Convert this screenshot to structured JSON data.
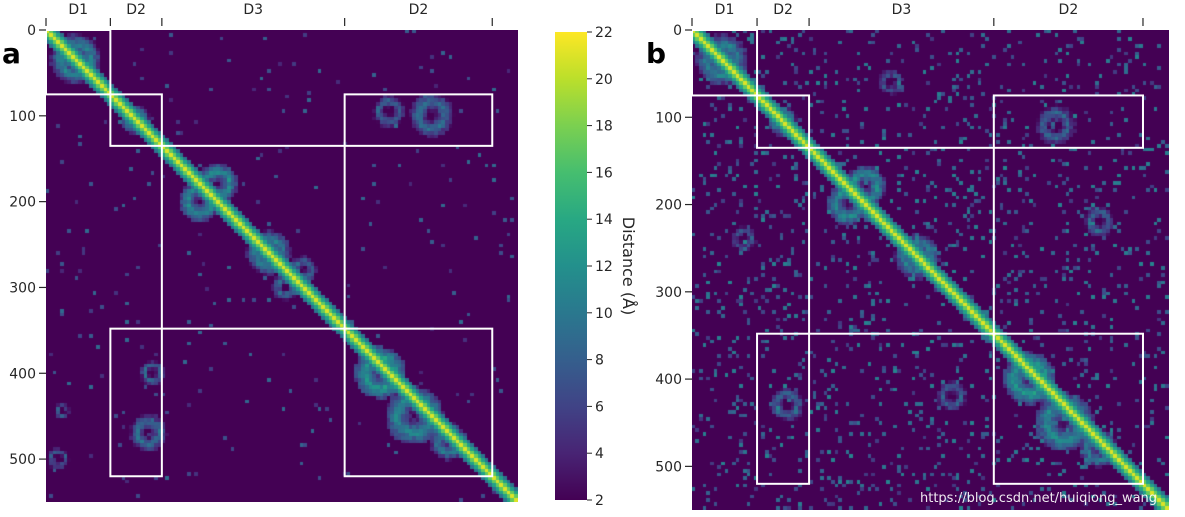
{
  "chart_data": [
    {
      "type": "heatmap",
      "panel_label": "a",
      "description_kind": "residue distance map",
      "domains": [
        {
          "name": "D1",
          "range": [
            0,
            75
          ]
        },
        {
          "name": "D2",
          "range": [
            75,
            135
          ]
        },
        {
          "name": "D3",
          "range": [
            135,
            348
          ]
        },
        {
          "name": "D2",
          "range": [
            348,
            520
          ]
        }
      ],
      "boxes": [
        {
          "x": [
            0,
            75
          ],
          "y": [
            0,
            75
          ]
        },
        {
          "x": [
            75,
            135
          ],
          "y": [
            75,
            135
          ]
        },
        {
          "x": [
            348,
            520
          ],
          "y": [
            75,
            135
          ]
        },
        {
          "x": [
            135,
            348
          ],
          "y": [
            135,
            348
          ]
        },
        {
          "x": [
            75,
            135
          ],
          "y": [
            348,
            520
          ]
        },
        {
          "x": [
            348,
            520
          ],
          "y": [
            348,
            520
          ]
        }
      ],
      "blobs": [
        {
          "x": 35,
          "y": 35,
          "r": 30,
          "d": 12
        },
        {
          "x": 105,
          "y": 105,
          "r": 18,
          "d": 13
        },
        {
          "x": 180,
          "y": 200,
          "r": 24,
          "d": 11
        },
        {
          "x": 200,
          "y": 180,
          "r": 24,
          "d": 11
        },
        {
          "x": 260,
          "y": 260,
          "r": 26,
          "d": 12
        },
        {
          "x": 300,
          "y": 280,
          "r": 16,
          "d": 13
        },
        {
          "x": 280,
          "y": 300,
          "r": 16,
          "d": 13
        },
        {
          "x": 390,
          "y": 400,
          "r": 30,
          "d": 10
        },
        {
          "x": 430,
          "y": 450,
          "r": 34,
          "d": 11
        },
        {
          "x": 470,
          "y": 480,
          "r": 22,
          "d": 12
        },
        {
          "x": 450,
          "y": 100,
          "r": 26,
          "d": 13
        },
        {
          "x": 400,
          "y": 95,
          "r": 20,
          "d": 14
        },
        {
          "x": 120,
          "y": 470,
          "r": 22,
          "d": 13
        },
        {
          "x": 125,
          "y": 400,
          "r": 16,
          "d": 14
        },
        {
          "x": 15,
          "y": 500,
          "r": 14,
          "d": 15
        },
        {
          "x": 20,
          "y": 445,
          "r": 10,
          "d": 15
        }
      ],
      "xlim": [
        0,
        550
      ],
      "ylim": [
        550,
        0
      ],
      "yticks": [
        0,
        100,
        200,
        300,
        400,
        500
      ],
      "yticklabels": [
        "0",
        "100",
        "200",
        "300",
        "400",
        "500"
      ]
    },
    {
      "type": "heatmap",
      "panel_label": "b",
      "description_kind": "residue distance map",
      "domains": [
        {
          "name": "D1",
          "range": [
            0,
            75
          ]
        },
        {
          "name": "D2",
          "range": [
            75,
            135
          ]
        },
        {
          "name": "D3",
          "range": [
            135,
            348
          ]
        },
        {
          "name": "D2",
          "range": [
            348,
            520
          ]
        }
      ],
      "boxes": [
        {
          "x": [
            0,
            75
          ],
          "y": [
            0,
            75
          ]
        },
        {
          "x": [
            75,
            135
          ],
          "y": [
            75,
            135
          ]
        },
        {
          "x": [
            348,
            520
          ],
          "y": [
            75,
            135
          ]
        },
        {
          "x": [
            135,
            348
          ],
          "y": [
            135,
            348
          ]
        },
        {
          "x": [
            75,
            135
          ],
          "y": [
            348,
            520
          ]
        },
        {
          "x": [
            348,
            520
          ],
          "y": [
            348,
            520
          ]
        }
      ],
      "blobs": [
        {
          "x": 35,
          "y": 35,
          "r": 30,
          "d": 12
        },
        {
          "x": 105,
          "y": 105,
          "r": 18,
          "d": 13
        },
        {
          "x": 180,
          "y": 200,
          "r": 24,
          "d": 11
        },
        {
          "x": 200,
          "y": 180,
          "r": 24,
          "d": 11
        },
        {
          "x": 260,
          "y": 260,
          "r": 26,
          "d": 12
        },
        {
          "x": 390,
          "y": 400,
          "r": 30,
          "d": 10
        },
        {
          "x": 430,
          "y": 450,
          "r": 34,
          "d": 11
        },
        {
          "x": 470,
          "y": 480,
          "r": 22,
          "d": 12
        },
        {
          "x": 420,
          "y": 110,
          "r": 24,
          "d": 14
        },
        {
          "x": 470,
          "y": 220,
          "r": 18,
          "d": 14
        },
        {
          "x": 300,
          "y": 420,
          "r": 18,
          "d": 14
        },
        {
          "x": 110,
          "y": 430,
          "r": 20,
          "d": 14
        },
        {
          "x": 230,
          "y": 60,
          "r": 16,
          "d": 15
        },
        {
          "x": 60,
          "y": 240,
          "r": 16,
          "d": 15
        }
      ],
      "noise": true,
      "xlim": [
        0,
        550
      ],
      "ylim": [
        550,
        0
      ],
      "yticks": [
        0,
        100,
        200,
        300,
        400,
        500
      ],
      "yticklabels": [
        "0",
        "100",
        "200",
        "300",
        "400",
        "500"
      ]
    }
  ],
  "colorbar": {
    "label": "Distance (Å)",
    "min": 2,
    "max": 22,
    "ticks": [
      "22",
      "20",
      "18",
      "16",
      "14",
      "12",
      "10",
      "8",
      "6",
      "4",
      "2"
    ],
    "colormap": "viridis_r"
  },
  "watermark": "https://blog.csdn.net/huiqiong_wang"
}
